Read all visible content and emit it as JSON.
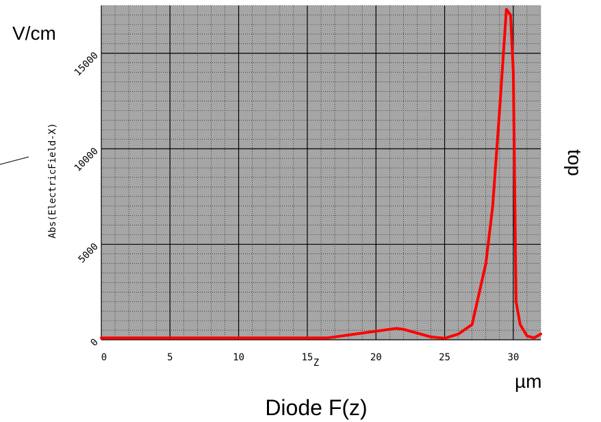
{
  "chart_data": {
    "type": "line",
    "title": "Diode F(z)",
    "xlabel": "Z",
    "ylabel": "Abs(ElectricField-X)",
    "x_unit": "µm",
    "y_unit": "V/cm",
    "right_label": "top",
    "xlim": [
      0,
      32
    ],
    "ylim": [
      0,
      17500
    ],
    "x_ticks": [
      "0",
      "5",
      "10",
      "15",
      "20",
      "25",
      "30"
    ],
    "y_ticks": [
      "0",
      "5000",
      "10000",
      "15000"
    ],
    "grid": true,
    "background_color": "#a6a6a6",
    "line_color": "#ff0000",
    "series": [
      {
        "x": [
          0,
          5,
          10,
          15,
          16.5,
          17,
          18,
          19,
          20,
          21,
          21.5,
          22,
          23,
          24,
          25,
          26,
          27,
          28,
          28.5,
          29,
          29.5,
          29.8,
          30,
          30.2,
          30.5,
          31,
          31.5,
          32
        ],
        "y": [
          100,
          100,
          100,
          100,
          100,
          150,
          250,
          350,
          450,
          550,
          600,
          550,
          350,
          150,
          80,
          300,
          800,
          4000,
          7000,
          12000,
          17300,
          17000,
          14000,
          2000,
          800,
          200,
          100,
          300
        ]
      }
    ]
  }
}
